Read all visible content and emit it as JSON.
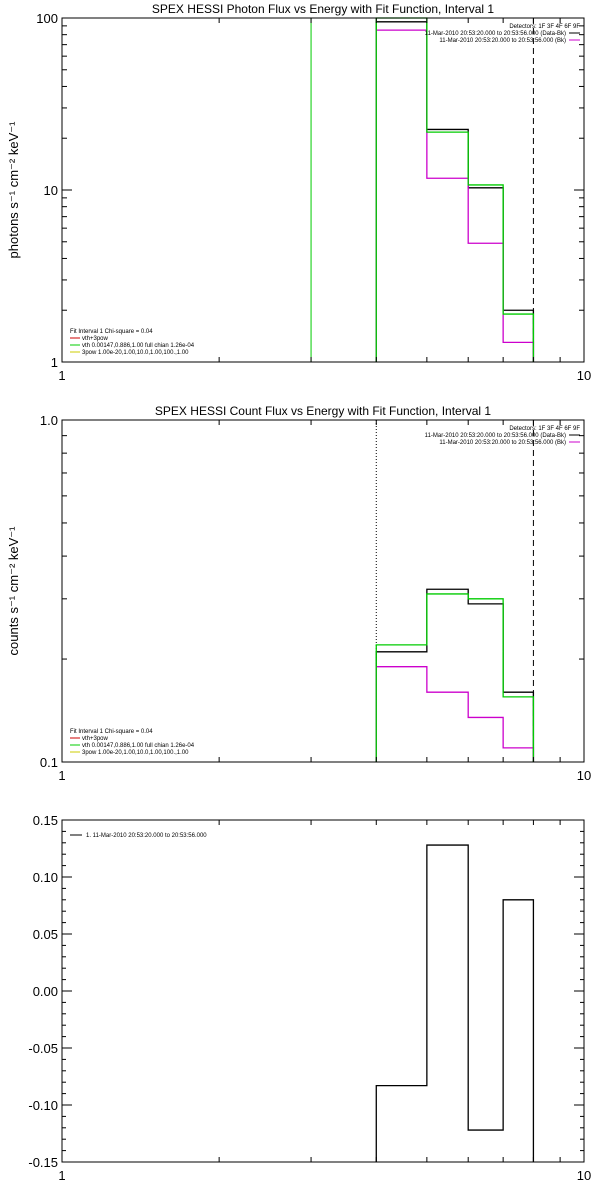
{
  "chart_data": [
    {
      "type": "line",
      "title": "SPEX HESSI Photon Flux vs Energy with Fit Function, Interval 1",
      "xlabel": "",
      "ylabel": "photons s⁻¹ cm⁻² keV⁻¹",
      "xscale": "log",
      "yscale": "log",
      "xlim": [
        1,
        10
      ],
      "ylim": [
        1,
        100
      ],
      "x_ticks": [
        {
          "v": 1,
          "label": "1"
        },
        {
          "v": 10,
          "label": "10"
        }
      ],
      "y_ticks": [
        {
          "v": 1,
          "label": "1"
        },
        {
          "v": 10,
          "label": "10"
        },
        {
          "v": 100,
          "label": "100"
        }
      ],
      "vlines": [
        {
          "x": 3.0,
          "color": "#00cc00",
          "dash": ""
        },
        {
          "x": 4.0,
          "color": "#cc00cc",
          "dash": ""
        },
        {
          "x": 8.0,
          "color": "#000000",
          "dash": "6,4"
        }
      ],
      "series": [
        {
          "color": "#000000",
          "edges": [
            4,
            5,
            6,
            7,
            8
          ],
          "values": [
            95,
            22.5,
            10.3,
            2.0
          ]
        },
        {
          "color": "#cc00cc",
          "edges": [
            4,
            5,
            6,
            7,
            8
          ],
          "values": [
            85,
            11.7,
            4.9,
            1.3
          ]
        },
        {
          "color": "#00cc00",
          "edges": [
            4,
            5,
            6,
            7,
            8
          ],
          "values": [
            103,
            21.7,
            10.7,
            1.9
          ]
        }
      ],
      "legend_top_right": [
        {
          "text": "Detectors: 1F 3F 4F 6F 9F",
          "color": "",
          "line_color": ""
        },
        {
          "text": "11-Mar-2010 20:53:20.000 to 20:53:56.000 (Data-Bk)",
          "color": "",
          "line_color": "#000000"
        },
        {
          "text": "11-Mar-2010 20:53:20.000 to 20:53:56.000 (Bk)",
          "color": "",
          "line_color": "#cc00cc"
        }
      ],
      "legend_bottom_left": [
        {
          "text": "Fit Interval 1    Chi-square = 0.04",
          "line_color": ""
        },
        {
          "text": "vth+3pow",
          "line_color": "#cc0000"
        },
        {
          "text": "vth 0.00147,0.886,1.00  full chian 1.26e-04",
          "line_color": "#00cc00"
        },
        {
          "text": "3pow 1.00e-20,1.00,10.0,1.00,100.,1.00",
          "line_color": "#cccc00"
        }
      ]
    },
    {
      "type": "line",
      "title": "SPEX HESSI Count Flux vs Energy with Fit Function, Interval 1",
      "xlabel": "",
      "ylabel": "counts s⁻¹ cm⁻² keV⁻¹",
      "xscale": "log",
      "yscale": "log",
      "xlim": [
        1,
        10
      ],
      "ylim": [
        0.1,
        1.0
      ],
      "x_ticks": [
        {
          "v": 1,
          "label": "1"
        },
        {
          "v": 10,
          "label": "10"
        }
      ],
      "y_ticks": [
        {
          "v": 0.1,
          "label": "0.1"
        },
        {
          "v": 1.0,
          "label": "1.0"
        }
      ],
      "vlines": [
        {
          "x": 4.0,
          "color": "#000000",
          "dash": "1,2"
        },
        {
          "x": 8.0,
          "color": "#000000",
          "dash": "6,4"
        }
      ],
      "series": [
        {
          "color": "#000000",
          "edges": [
            4,
            5,
            6,
            7,
            8
          ],
          "values": [
            0.21,
            0.32,
            0.29,
            0.16
          ]
        },
        {
          "color": "#cc00cc",
          "edges": [
            4,
            5,
            6,
            7,
            8
          ],
          "values": [
            0.19,
            0.16,
            0.135,
            0.11
          ]
        },
        {
          "color": "#00cc00",
          "edges": [
            4,
            5,
            6,
            7,
            8
          ],
          "values": [
            0.22,
            0.31,
            0.3,
            0.155
          ]
        }
      ],
      "legend_top_right": [
        {
          "text": "Detectors: 1F 3F 4F 6F 9F",
          "color": "",
          "line_color": ""
        },
        {
          "text": "11-Mar-2010 20:53:20.000 to 20:53:56.000 (Data-Bk)",
          "color": "",
          "line_color": "#000000"
        },
        {
          "text": "11-Mar-2010 20:53:20.000 to 20:53:56.000 (Bk)",
          "color": "",
          "line_color": "#cc00cc"
        }
      ],
      "legend_bottom_left": [
        {
          "text": "Fit Interval 1    Chi-square = 0.04",
          "line_color": ""
        },
        {
          "text": "vth+3pow",
          "line_color": "#cc0000"
        },
        {
          "text": "vth 0.00147,0.886,1.00  full chian 1.26e-04",
          "line_color": "#00cc00"
        },
        {
          "text": "3pow 1.00e-20,1.00,10.0,1.00,100.,1.00",
          "line_color": "#cccc00"
        }
      ]
    },
    {
      "type": "line",
      "title": "",
      "xlabel": "",
      "ylabel": "",
      "xscale": "log",
      "yscale": "linear",
      "xlim": [
        1,
        10
      ],
      "ylim": [
        -0.15,
        0.15
      ],
      "x_ticks": [
        {
          "v": 1,
          "label": "1"
        },
        {
          "v": 10,
          "label": "10"
        }
      ],
      "y_ticks": [
        {
          "v": 0.15,
          "label": "0.15"
        },
        {
          "v": 0.1,
          "label": "0.10"
        },
        {
          "v": 0.05,
          "label": "0.05"
        },
        {
          "v": 0.0,
          "label": "0.00"
        },
        {
          "v": -0.05,
          "label": "-0.05"
        },
        {
          "v": -0.1,
          "label": "-0.10"
        },
        {
          "v": -0.15,
          "label": "-0.15"
        }
      ],
      "vlines": [],
      "series": [
        {
          "color": "#000000",
          "edges": [
            4,
            5,
            6,
            7,
            8
          ],
          "values": [
            -0.083,
            0.128,
            -0.122,
            0.08
          ]
        }
      ],
      "legend_top_right": [],
      "legend_bottom_left": [],
      "legend_top_left": [
        {
          "text": "1. 11-Mar-2010 20:53:20.000 to 20:53:56.000",
          "line_color": "#000000"
        }
      ]
    }
  ]
}
